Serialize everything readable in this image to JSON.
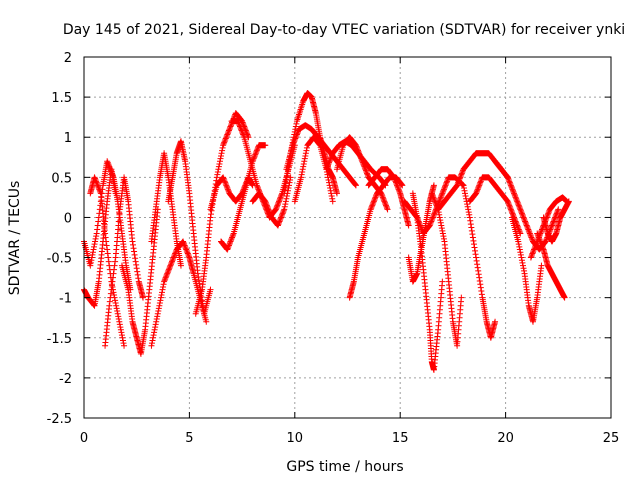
{
  "chart_data": {
    "type": "scatter",
    "title": "Day 145 of 2021, Sidereal Day-to-day VTEC variation (SDTVAR) for receiver ynki",
    "xlabel": "GPS time / hours",
    "ylabel": "SDTVAR / TECUs",
    "xlim": [
      0,
      25
    ],
    "ylim": [
      -2.5,
      2
    ],
    "xticks": [
      0,
      5,
      10,
      15,
      20,
      25
    ],
    "xtick_labels": [
      "0",
      "5",
      "10",
      "15",
      "20",
      "25"
    ],
    "yticks": [
      -2.5,
      -2,
      -1.5,
      -1,
      -0.5,
      0,
      0.5,
      1,
      1.5,
      2
    ],
    "ytick_labels": [
      "-2.5",
      "-2",
      "-1.5",
      "-1",
      "-0.5",
      "0",
      "0.5",
      "1",
      "1.5",
      "2"
    ],
    "grid": true,
    "marker": "+",
    "series": [
      {
        "name": "SDTVAR",
        "color": "#ff0000",
        "tracks": [
          {
            "x": [
              0.0,
              0.3,
              0.6,
              0.9,
              1.1,
              1.4,
              1.6,
              1.8,
              2.0,
              2.2
            ],
            "y": [
              -0.3,
              -0.6,
              -0.2,
              0.4,
              0.7,
              0.5,
              0.2,
              -0.2,
              -0.6,
              -0.9
            ]
          },
          {
            "x": [
              0.0,
              0.2,
              0.5,
              0.7,
              0.9,
              1.1,
              1.3,
              1.5
            ],
            "y": [
              -0.9,
              -1.0,
              -1.1,
              -0.8,
              -0.3,
              0.2,
              0.6,
              0.3
            ]
          },
          {
            "x": [
              0.3,
              0.5,
              0.8,
              1.0,
              1.3,
              1.6,
              1.9
            ],
            "y": [
              0.3,
              0.5,
              0.3,
              -0.2,
              -0.8,
              -1.2,
              -1.6
            ]
          },
          {
            "x": [
              1.0,
              1.2,
              1.5,
              1.7,
              1.9,
              2.1,
              2.3,
              2.6,
              2.8
            ],
            "y": [
              -1.6,
              -1.1,
              -0.5,
              0.1,
              0.5,
              0.2,
              -0.3,
              -0.8,
              -1.0
            ]
          },
          {
            "x": [
              1.8,
              2.1,
              2.3,
              2.5,
              2.7,
              2.9,
              3.1,
              3.3,
              3.5
            ],
            "y": [
              -0.6,
              -0.9,
              -1.3,
              -1.5,
              -1.7,
              -1.4,
              -0.9,
              -0.4,
              0.1
            ]
          },
          {
            "x": [
              3.2,
              3.5,
              3.8,
              4.1,
              4.4,
              4.7,
              5.0,
              5.2,
              5.5,
              5.8
            ],
            "y": [
              -1.6,
              -1.2,
              -0.8,
              -0.6,
              -0.4,
              -0.3,
              -0.5,
              -0.7,
              -1.0,
              -1.3
            ]
          },
          {
            "x": [
              3.2,
              3.4,
              3.6,
              3.8,
              4.0,
              4.2,
              4.4,
              4.6
            ],
            "y": [
              -0.3,
              0.1,
              0.5,
              0.8,
              0.5,
              0.1,
              -0.3,
              -0.6
            ]
          },
          {
            "x": [
              4.0,
              4.2,
              4.4,
              4.6,
              4.8,
              5.0,
              5.2,
              5.4,
              5.7,
              6.0
            ],
            "y": [
              0.2,
              0.5,
              0.8,
              0.95,
              0.7,
              0.3,
              -0.2,
              -0.7,
              -1.2,
              -0.9
            ]
          },
          {
            "x": [
              5.3,
              5.6,
              5.8,
              6.0,
              6.3,
              6.6,
              6.9,
              7.2,
              7.5,
              7.8
            ],
            "y": [
              -1.2,
              -0.9,
              -0.5,
              0.0,
              0.5,
              0.9,
              1.1,
              1.3,
              1.2,
              1.0
            ]
          },
          {
            "x": [
              6.0,
              6.3,
              6.6,
              6.9,
              7.2,
              7.5,
              7.8,
              8.0
            ],
            "y": [
              0.1,
              0.4,
              0.5,
              0.3,
              0.2,
              0.3,
              0.5,
              0.4
            ]
          },
          {
            "x": [
              6.5,
              6.8,
              7.1,
              7.4,
              7.7,
              8.0,
              8.3,
              8.6
            ],
            "y": [
              -0.3,
              -0.4,
              -0.2,
              0.1,
              0.4,
              0.7,
              0.9,
              0.9
            ]
          },
          {
            "x": [
              7.0,
              7.3,
              7.6,
              7.9,
              8.2,
              8.5,
              8.8,
              9.1,
              9.4,
              9.7,
              10.0
            ],
            "y": [
              1.2,
              1.2,
              1.0,
              0.7,
              0.4,
              0.2,
              0.0,
              0.1,
              0.3,
              0.6,
              0.9
            ]
          },
          {
            "x": [
              8.0,
              8.3,
              8.6,
              8.9,
              9.2,
              9.5,
              9.8
            ],
            "y": [
              0.2,
              0.3,
              0.2,
              0.0,
              -0.1,
              0.1,
              0.5
            ]
          },
          {
            "x": [
              9.5,
              9.8,
              10.1,
              10.4,
              10.6,
              10.8,
              11.0,
              11.2,
              11.4,
              11.6,
              11.8,
              12.0
            ],
            "y": [
              0.3,
              0.8,
              1.2,
              1.45,
              1.55,
              1.5,
              1.3,
              1.0,
              0.8,
              0.6,
              0.5,
              0.3
            ]
          },
          {
            "x": [
              9.6,
              9.9,
              10.2,
              10.5,
              10.8,
              11.1,
              11.4,
              11.7,
              12.0,
              12.3,
              12.6,
              12.9
            ],
            "y": [
              0.6,
              0.9,
              1.1,
              1.15,
              1.1,
              1.0,
              0.9,
              0.8,
              0.7,
              0.6,
              0.5,
              0.4
            ]
          },
          {
            "x": [
              10.0,
              10.3,
              10.6,
              10.9,
              11.2,
              11.5,
              11.8
            ],
            "y": [
              0.2,
              0.5,
              0.9,
              1.0,
              0.9,
              0.6,
              0.2
            ]
          },
          {
            "x": [
              11.5,
              11.8,
              12.1,
              12.4,
              12.7,
              13.0,
              13.3,
              13.6,
              14.0,
              14.3
            ],
            "y": [
              0.6,
              0.8,
              0.9,
              0.95,
              0.9,
              0.8,
              0.7,
              0.6,
              0.5,
              0.4
            ]
          },
          {
            "x": [
              12.0,
              12.3,
              12.6,
              12.9,
              13.2,
              13.5,
              13.8,
              14.1,
              14.4
            ],
            "y": [
              0.6,
              0.9,
              1.0,
              0.9,
              0.7,
              0.5,
              0.4,
              0.3,
              0.1
            ]
          },
          {
            "x": [
              12.6,
              12.8,
              13.0,
              13.3,
              13.6,
              13.9,
              14.2,
              14.5,
              14.8,
              15.1
            ],
            "y": [
              -1.0,
              -0.8,
              -0.5,
              -0.2,
              0.1,
              0.3,
              0.4,
              0.5,
              0.5,
              0.4
            ]
          },
          {
            "x": [
              13.5,
              13.8,
              14.1,
              14.4,
              14.7,
              15.0,
              15.2,
              15.4
            ],
            "y": [
              0.4,
              0.5,
              0.6,
              0.6,
              0.5,
              0.3,
              0.1,
              -0.1
            ]
          },
          {
            "x": [
              15.2,
              15.5,
              15.8,
              16.1,
              16.4,
              16.7,
              17.0,
              17.3,
              17.6,
              18.0
            ],
            "y": [
              0.2,
              0.1,
              0.0,
              -0.2,
              -0.1,
              0.1,
              0.3,
              0.5,
              0.5,
              0.4
            ]
          },
          {
            "x": [
              15.4,
              15.6,
              15.8,
              16.0,
              16.2,
              16.4,
              16.6
            ],
            "y": [
              -0.5,
              -0.8,
              -0.7,
              -0.4,
              -0.1,
              0.2,
              0.4
            ]
          },
          {
            "x": [
              15.6,
              15.8,
              16.0,
              16.2,
              16.4,
              16.5,
              16.6,
              16.8,
              17.0
            ],
            "y": [
              0.3,
              0.0,
              -0.4,
              -0.9,
              -1.4,
              -1.8,
              -1.9,
              -1.4,
              -0.8
            ]
          },
          {
            "x": [
              16.5,
              16.8,
              17.1,
              17.3,
              17.5,
              17.7,
              17.9
            ],
            "y": [
              0.3,
              0.1,
              -0.3,
              -0.8,
              -1.3,
              -1.6,
              -1.0
            ]
          },
          {
            "x": [
              16.8,
              17.1,
              17.4,
              17.7,
              18.0,
              18.3,
              18.6,
              18.9,
              19.2,
              19.5,
              19.8,
              20.1
            ],
            "y": [
              0.1,
              0.2,
              0.3,
              0.4,
              0.6,
              0.7,
              0.8,
              0.8,
              0.8,
              0.7,
              0.6,
              0.5
            ]
          },
          {
            "x": [
              18.0,
              18.3,
              18.6,
              18.9,
              19.1,
              19.3,
              19.5
            ],
            "y": [
              0.4,
              0.0,
              -0.5,
              -1.0,
              -1.3,
              -1.5,
              -1.3
            ]
          },
          {
            "x": [
              18.3,
              18.6,
              18.9,
              19.2,
              19.5,
              19.8,
              20.1,
              20.4,
              20.7
            ],
            "y": [
              0.2,
              0.3,
              0.5,
              0.5,
              0.4,
              0.3,
              0.2,
              0.0,
              -0.2
            ]
          },
          {
            "x": [
              19.5,
              19.8,
              20.1,
              20.4,
              20.7,
              21.0,
              21.3,
              21.6,
              21.9,
              22.2,
              22.5
            ],
            "y": [
              0.7,
              0.6,
              0.5,
              0.3,
              0.1,
              -0.1,
              -0.3,
              -0.4,
              -0.3,
              -0.1,
              0.1
            ]
          },
          {
            "x": [
              20.3,
              20.6,
              20.9,
              21.1,
              21.3,
              21.5,
              21.7
            ],
            "y": [
              0.0,
              -0.3,
              -0.7,
              -1.1,
              -1.3,
              -1.0,
              -0.6
            ]
          },
          {
            "x": [
              21.5,
              21.8,
              22.0,
              22.2,
              22.4,
              22.6,
              22.8
            ],
            "y": [
              -0.2,
              -0.4,
              -0.6,
              -0.7,
              -0.8,
              -0.9,
              -1.0
            ]
          },
          {
            "x": [
              21.2,
              21.5,
              21.8,
              22.1,
              22.4,
              22.7,
              22.9
            ],
            "y": [
              -0.5,
              -0.3,
              -0.1,
              0.1,
              0.2,
              0.25,
              0.2
            ]
          },
          {
            "x": [
              21.8,
              22.0,
              22.2,
              22.4,
              22.6,
              22.8,
              23.0
            ],
            "y": [
              0.0,
              -0.2,
              -0.3,
              -0.2,
              0.0,
              0.1,
              0.2
            ]
          }
        ]
      }
    ]
  }
}
